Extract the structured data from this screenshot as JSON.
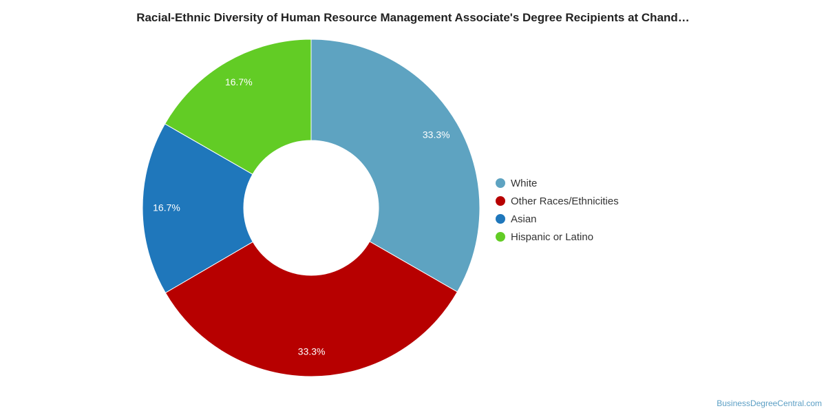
{
  "chart_data": {
    "type": "pie",
    "title": "Racial-Ethnic Diversity of Human Resource Management Associate's Degree Recipients at Chand…",
    "donut": true,
    "legend_position": "right",
    "series": [
      {
        "name": "White",
        "value": 33.3,
        "label": "33.3%",
        "color": "#5ea3c1"
      },
      {
        "name": "Other Races/Ethnicities",
        "value": 33.3,
        "label": "33.3%",
        "color": "#b70000"
      },
      {
        "name": "Asian",
        "value": 16.7,
        "label": "16.7%",
        "color": "#1f77bb"
      },
      {
        "name": "Hispanic or Latino",
        "value": 16.7,
        "label": "16.7%",
        "color": "#62cc25"
      }
    ]
  },
  "watermark": "BusinessDegreeCentral.com"
}
